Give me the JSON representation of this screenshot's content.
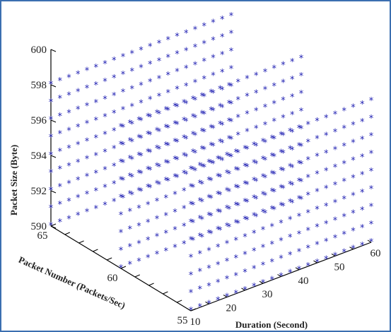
{
  "chart_data": {
    "type": "scatter",
    "view": "3d",
    "marker": "*",
    "marker_color": "#1a1ab0",
    "axis_color": "#000000",
    "xlabel": "Packet Number (Packets/Sec)",
    "ylabel": "Duration (Second)",
    "zlabel": "Packet Size (Byte)",
    "xlim": [
      55,
      65
    ],
    "ylim": [
      10,
      60
    ],
    "zlim": [
      590,
      600
    ],
    "x_ticks": [
      55,
      60,
      65
    ],
    "y_ticks": [
      10,
      20,
      30,
      40,
      50,
      60
    ],
    "z_ticks": [
      590,
      592,
      594,
      596,
      598,
      600
    ],
    "series": [
      {
        "x": 65,
        "y_from": 10,
        "y_to": 60,
        "y_step": 2.5,
        "z_from": 590,
        "z_to": 598,
        "z_step": 1
      },
      {
        "x": 60,
        "y_from": 10,
        "y_to": 60,
        "y_step": 2.5,
        "z_from": 590,
        "z_to": 598,
        "z_step": 1
      },
      {
        "x": 55,
        "y_from": 10,
        "y_to": 60,
        "y_step": 2.5,
        "z_from": 590,
        "z_to": 598,
        "z_step": 1
      }
    ]
  }
}
